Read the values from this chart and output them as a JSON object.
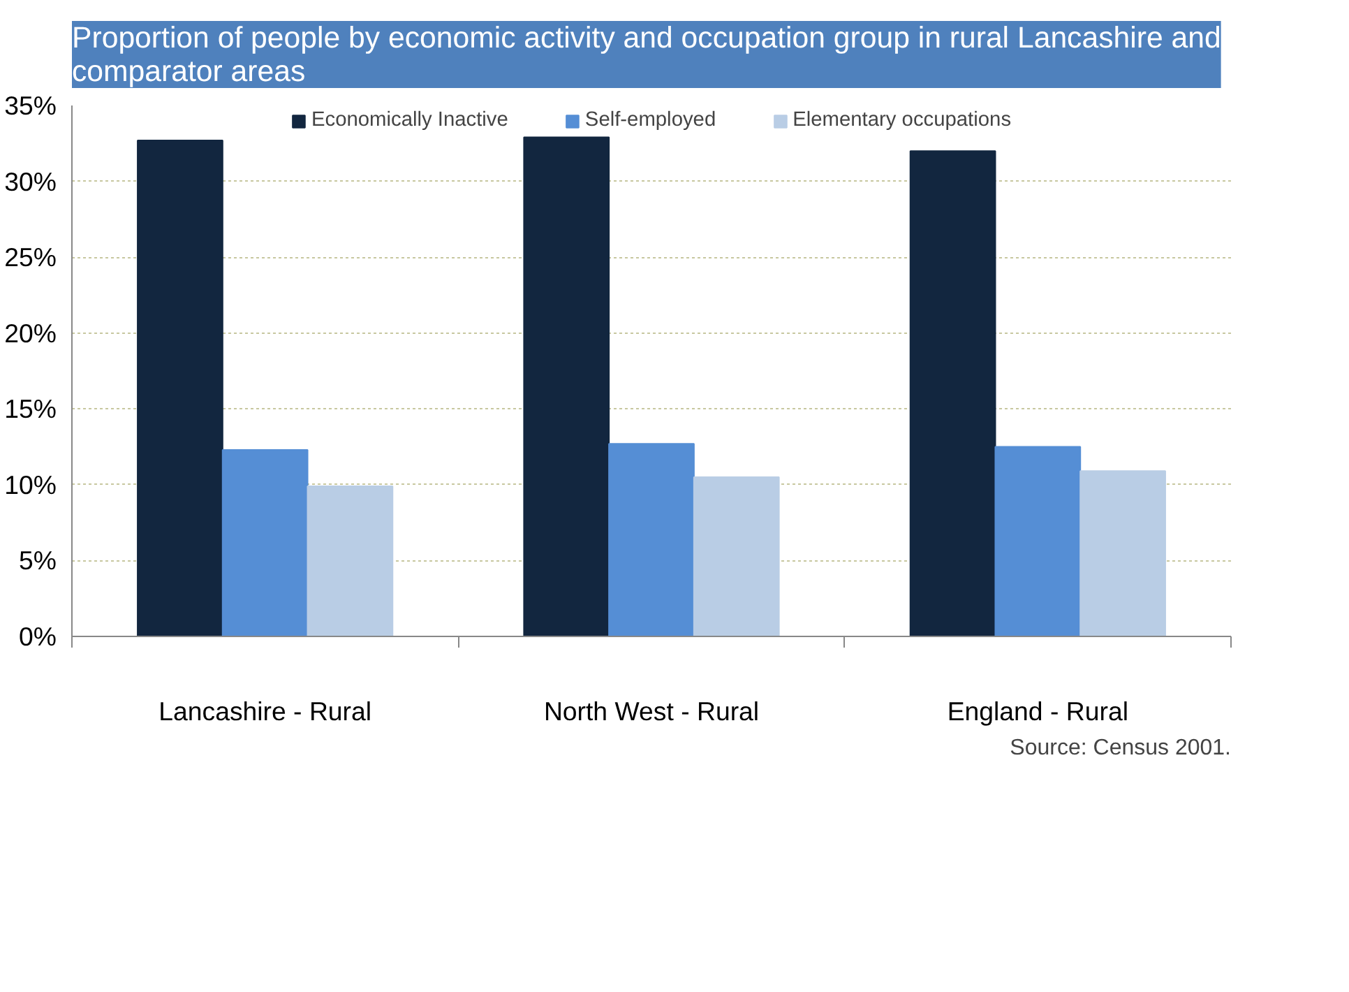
{
  "chart_data": {
    "type": "bar",
    "title": "Proportion of people by economic activity and occupation group in rural Lancashire and\ncomparator areas",
    "categories": [
      "Lancashire - Rural",
      "North West - Rural",
      "England - Rural"
    ],
    "series": [
      {
        "name": "Economically Inactive",
        "color": "#12263f",
        "values": [
          32.7,
          32.9,
          32.0
        ]
      },
      {
        "name": "Self-employed",
        "color": "#558ed5",
        "values": [
          12.3,
          12.7,
          12.5
        ]
      },
      {
        "name": "Elementary occupations",
        "color": "#b9cde5",
        "values": [
          9.9,
          10.5,
          10.9
        ]
      }
    ],
    "ylim": [
      0,
      35
    ],
    "yticks": [
      {
        "value": 0,
        "label": "0%"
      },
      {
        "value": 5,
        "label": "5%"
      },
      {
        "value": 10,
        "label": "10%"
      },
      {
        "value": 15,
        "label": "15%"
      },
      {
        "value": 20,
        "label": "20%"
      },
      {
        "value": 25,
        "label": "25%"
      },
      {
        "value": 30,
        "label": "30%"
      },
      {
        "value": 35,
        "label": "35%"
      }
    ],
    "grid": "y",
    "legend": "top",
    "annotations": [
      "Source: Census 2001."
    ]
  }
}
